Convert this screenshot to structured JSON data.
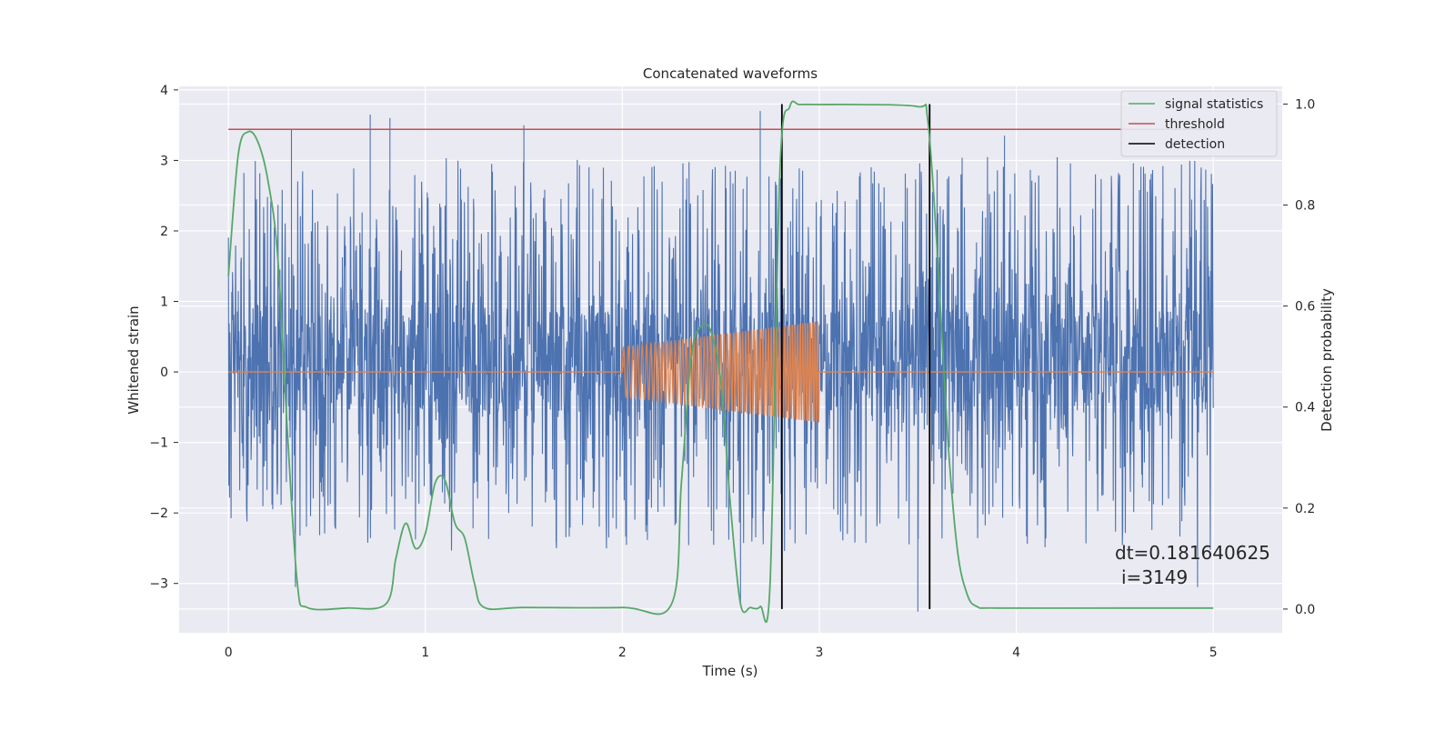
{
  "chart_data": {
    "type": "line",
    "title": "Concatenated waveforms",
    "xlabel": "Time (s)",
    "ylabel": "Whitened strain",
    "ylabel_right": "Detection probability",
    "xlim": [
      -0.25,
      5.35
    ],
    "ylim": [
      -3.7,
      4.05
    ],
    "ylim_right": [
      -0.047,
      1.035
    ],
    "x_ticks": [
      "0",
      "1",
      "2",
      "3",
      "4",
      "5"
    ],
    "y_ticks": [
      "−3",
      "−2",
      "−1",
      "0",
      "1",
      "2",
      "3",
      "4"
    ],
    "y_ticks_right": [
      "0.0",
      "0.2",
      "0.4",
      "0.6",
      "0.8",
      "1.0"
    ],
    "grid": true,
    "legend_position": "top-right",
    "colors": {
      "strain": "#4c72b0",
      "template": "#dd8452",
      "signal_statistics": "#55a868",
      "threshold": "#c44e52",
      "detection": "#000000",
      "background": "#eaeaf2"
    },
    "series": [
      {
        "name": "",
        "axis": "left",
        "color": "#4c72b0",
        "description_values": {
          "x_range": [
            0,
            5
          ],
          "dense_band": [
            -0.55,
            0.85
          ],
          "notable_peaks": [
            {
              "x": 0.32,
              "y": 3.45
            },
            {
              "x": 0.72,
              "y": 3.65
            },
            {
              "x": 0.82,
              "y": 3.6
            },
            {
              "x": 1.5,
              "y": 3.5
            },
            {
              "x": 2.7,
              "y": 3.7
            },
            {
              "x": 3.94,
              "y": 3.35
            }
          ],
          "notable_troughs": [
            {
              "x": 0.34,
              "y": -3.05
            },
            {
              "x": 2.6,
              "y": -3.3
            },
            {
              "x": 3.5,
              "y": -3.4
            },
            {
              "x": 4.92,
              "y": -3.05
            }
          ]
        }
      },
      {
        "name": "",
        "axis": "left",
        "color": "#dd8452",
        "chirp": {
          "x_start": 2.0,
          "x_end": 3.0,
          "amp_start": 0.35,
          "amp_end": 0.72,
          "freq_start": 40,
          "freq_end": 82
        }
      },
      {
        "name": "signal statistics",
        "axis": "right",
        "color": "#55a868",
        "x": [
          0,
          0.05,
          0.1,
          0.15,
          0.2,
          0.25,
          0.3,
          0.35,
          0.4,
          0.6,
          0.8,
          0.85,
          0.9,
          0.95,
          1.0,
          1.05,
          1.1,
          1.15,
          1.2,
          1.25,
          1.3,
          1.5,
          2.0,
          2.25,
          2.3,
          2.35,
          2.4,
          2.45,
          2.5,
          2.55,
          2.6,
          2.65,
          2.7,
          2.75,
          2.8,
          2.85,
          2.9,
          3.0,
          3.2,
          3.5,
          3.55,
          3.6,
          3.65,
          3.7,
          3.75,
          3.8,
          3.9,
          4.5,
          5.0
        ],
        "y": [
          0.66,
          0.9,
          0.945,
          0.925,
          0.85,
          0.7,
          0.35,
          0.05,
          0.003,
          0.002,
          0.01,
          0.1,
          0.17,
          0.12,
          0.15,
          0.25,
          0.255,
          0.17,
          0.14,
          0.05,
          0.003,
          0.003,
          0.003,
          0.01,
          0.25,
          0.5,
          0.56,
          0.55,
          0.45,
          0.2,
          0.01,
          0.003,
          0.005,
          0.05,
          0.87,
          0.995,
          0.999,
          0.999,
          0.999,
          0.995,
          0.97,
          0.7,
          0.35,
          0.12,
          0.03,
          0.005,
          0.002,
          0.002,
          0.002
        ]
      },
      {
        "name": "threshold",
        "axis": "right",
        "color": "#c44e52",
        "x": [
          0,
          5
        ],
        "y": [
          0.95,
          0.95
        ]
      },
      {
        "name": "detection",
        "axis": "right",
        "color": "#000000",
        "vlines": [
          2.81,
          3.56
        ],
        "y_range": [
          0,
          1.0
        ]
      }
    ],
    "annotations": [
      {
        "text": "dt=0.181640625",
        "x": 4.52,
        "y_right": 0.1
      },
      {
        "text": "i=3149",
        "x": 4.55,
        "y_right": 0.06
      }
    ]
  }
}
